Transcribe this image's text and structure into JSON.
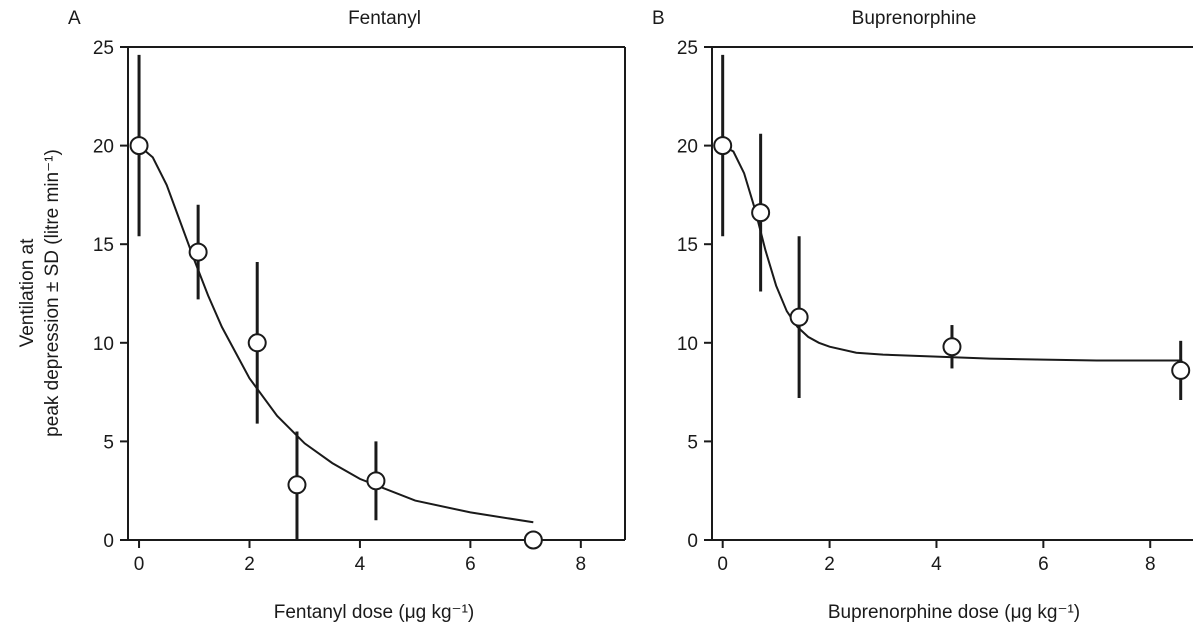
{
  "chart_data": [
    {
      "type": "scatter",
      "panel_letter": "A",
      "title": "Fentanyl",
      "xlabel": "Fentanyl dose (μg kg⁻¹)",
      "xlim": [
        -0.2,
        8.8
      ],
      "ylim": [
        0,
        25
      ],
      "xticks": [
        0,
        2,
        4,
        6,
        8
      ],
      "yticks": [
        0,
        5,
        10,
        15,
        20,
        25
      ],
      "points": [
        {
          "x": 0.0,
          "y": 20.0,
          "sd_low": 15.4,
          "sd_high": 24.6
        },
        {
          "x": 1.07,
          "y": 14.6,
          "sd_low": 12.2,
          "sd_high": 17.0
        },
        {
          "x": 2.14,
          "y": 10.0,
          "sd_low": 5.9,
          "sd_high": 14.1
        },
        {
          "x": 2.86,
          "y": 2.8,
          "sd_low": 0.0,
          "sd_high": 5.5
        },
        {
          "x": 4.29,
          "y": 3.0,
          "sd_low": 1.0,
          "sd_high": 5.0
        },
        {
          "x": 7.14,
          "y": 0.0,
          "sd_low": 0.0,
          "sd_high": 0.0
        }
      ],
      "fit_curve": {
        "x": [
          0,
          0.25,
          0.5,
          0.75,
          1.0,
          1.25,
          1.5,
          2.0,
          2.5,
          3.0,
          3.5,
          4.0,
          5.0,
          6.0,
          7.14
        ],
        "y": [
          20.0,
          19.4,
          18.0,
          16.1,
          14.2,
          12.4,
          10.8,
          8.2,
          6.3,
          4.9,
          3.9,
          3.1,
          2.0,
          1.4,
          0.9
        ]
      }
    },
    {
      "type": "scatter",
      "panel_letter": "B",
      "title": "Buprenorphine",
      "xlabel": "Buprenorphine dose (μg kg⁻¹)",
      "xlim": [
        -0.2,
        8.8
      ],
      "ylim": [
        0,
        25
      ],
      "xticks": [
        0,
        2,
        4,
        6,
        8
      ],
      "yticks": [
        0,
        5,
        10,
        15,
        20,
        25
      ],
      "points": [
        {
          "x": 0.0,
          "y": 20.0,
          "sd_low": 15.4,
          "sd_high": 24.6
        },
        {
          "x": 0.71,
          "y": 16.6,
          "sd_low": 12.6,
          "sd_high": 20.6
        },
        {
          "x": 1.43,
          "y": 11.3,
          "sd_low": 7.2,
          "sd_high": 15.4
        },
        {
          "x": 4.29,
          "y": 9.8,
          "sd_low": 8.7,
          "sd_high": 10.9
        },
        {
          "x": 8.57,
          "y": 8.6,
          "sd_low": 7.1,
          "sd_high": 10.1
        }
      ],
      "fit_curve": {
        "x": [
          0,
          0.2,
          0.4,
          0.6,
          0.8,
          1.0,
          1.2,
          1.4,
          1.6,
          1.8,
          2.0,
          2.5,
          3.0,
          4.0,
          5.0,
          6.0,
          7.0,
          8.6
        ],
        "y": [
          20.0,
          19.7,
          18.6,
          16.8,
          14.7,
          12.9,
          11.6,
          10.8,
          10.3,
          10.0,
          9.8,
          9.5,
          9.4,
          9.3,
          9.2,
          9.15,
          9.1,
          9.1
        ]
      }
    }
  ],
  "ylabel": {
    "line1": "Ventilation at",
    "line2": "peak depression ± SD (litre min⁻¹)"
  },
  "colors": {
    "ink": "#1a1a1a",
    "marker_fill": "#ffffff"
  }
}
